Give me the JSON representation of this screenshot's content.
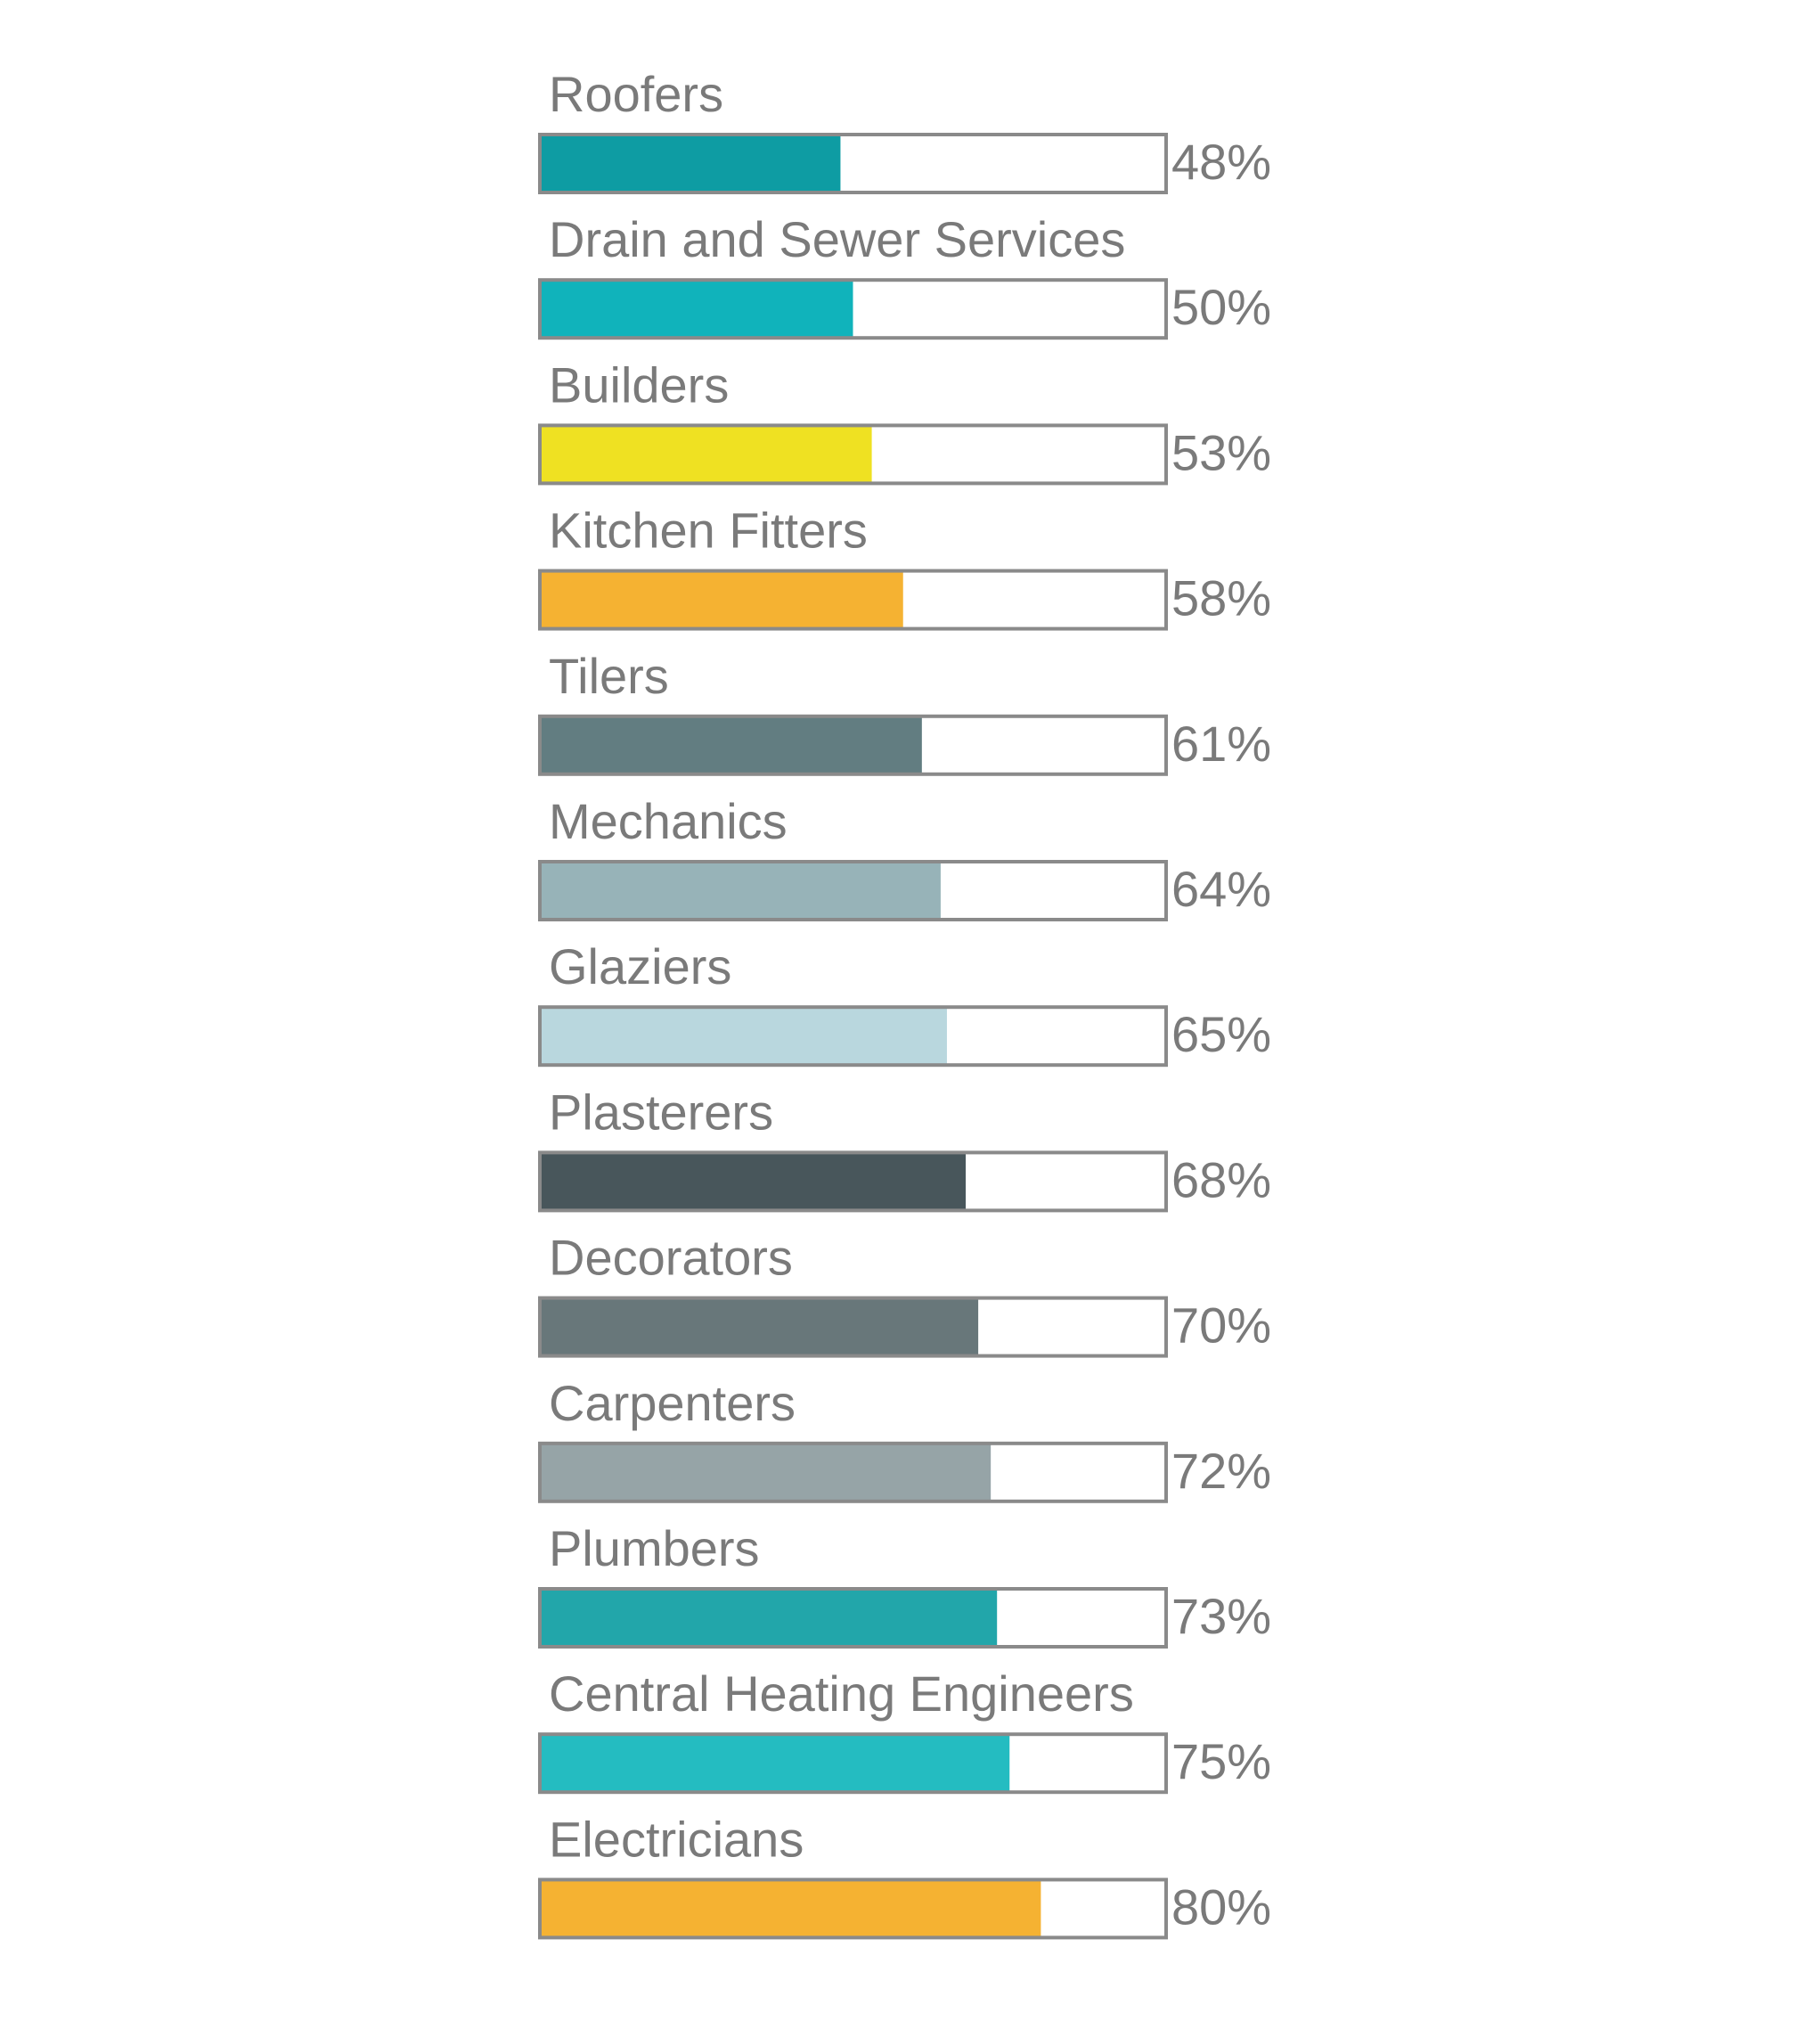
{
  "chart_data": {
    "type": "bar",
    "orientation": "horizontal",
    "categories": [
      "Roofers",
      "Drain and Sewer Services",
      "Builders",
      "Kitchen Fitters",
      "Tilers",
      "Mechanics",
      "Glaziers",
      "Plasterers",
      "Decorators",
      "Carpenters",
      "Plumbers",
      "Central Heating Engineers",
      "Electricians"
    ],
    "values": [
      48,
      50,
      53,
      58,
      61,
      64,
      65,
      68,
      70,
      72,
      73,
      75,
      80
    ],
    "value_labels": [
      "48%",
      "50%",
      "53%",
      "58%",
      "61%",
      "64%",
      "65%",
      "68%",
      "70%",
      "72%",
      "73%",
      "75%",
      "80%"
    ],
    "colors": [
      "#0e9ca3",
      "#10b3bb",
      "#efe122",
      "#f5b232",
      "#627d81",
      "#97b3b8",
      "#b9d7de",
      "#48565b",
      "#68777a",
      "#96a4a7",
      "#22a6aa",
      "#24bcc1",
      "#f5b232"
    ],
    "xlim": [
      0,
      100
    ],
    "grid": false,
    "legend": "none",
    "title": "",
    "xlabel": "",
    "ylabel": "",
    "track_border_color": "#8a8a8a",
    "text_color": "#7a7a7a"
  }
}
